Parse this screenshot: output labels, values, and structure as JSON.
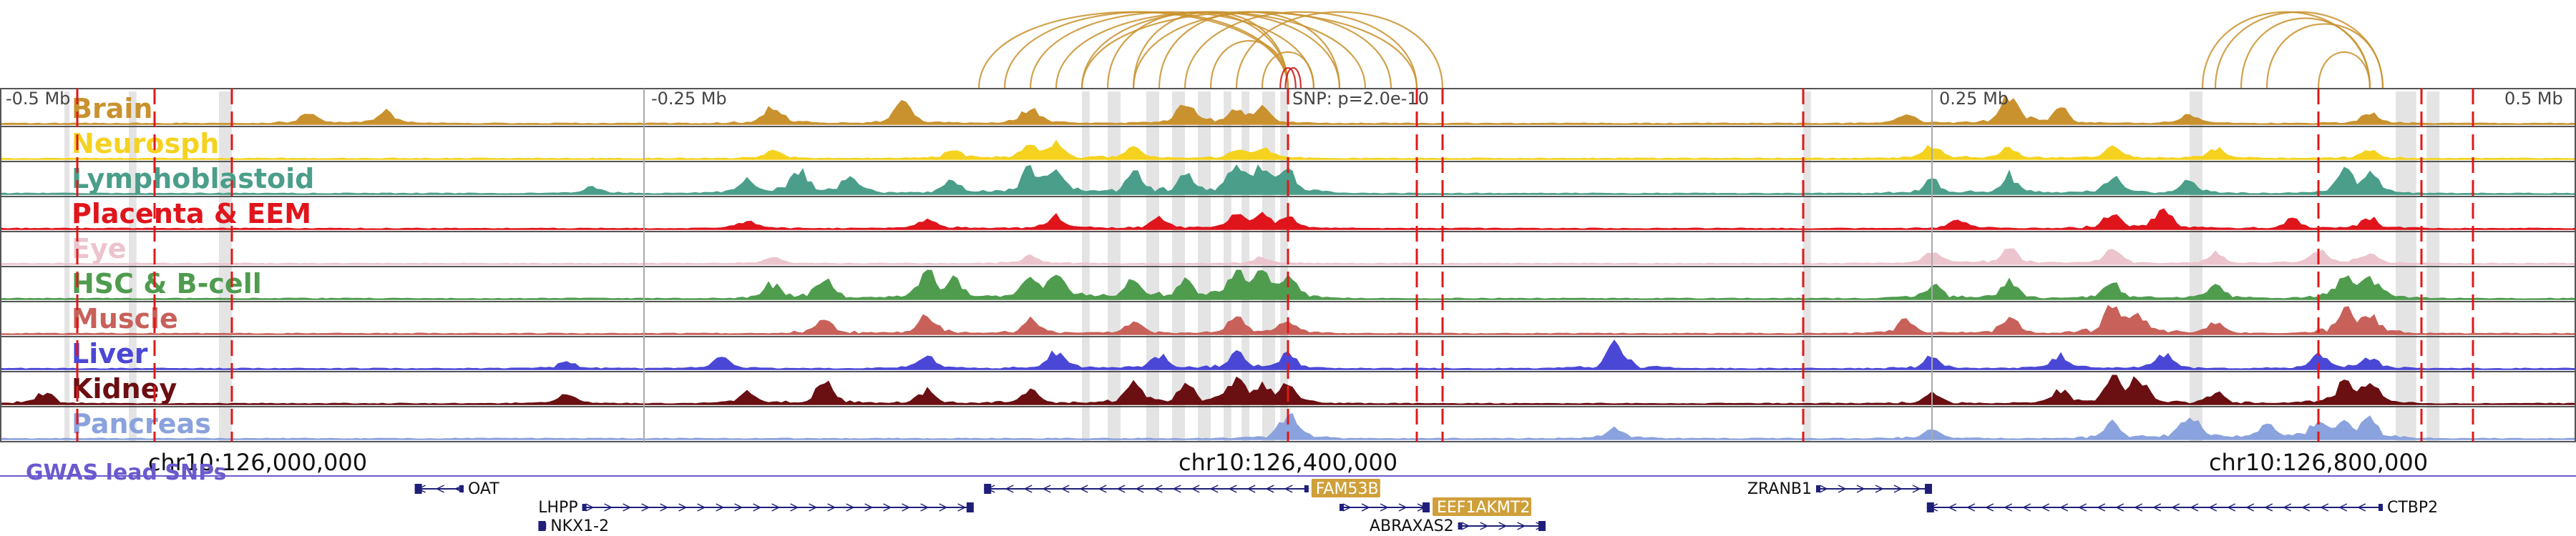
{
  "colors": {
    "loop": "#c9922e",
    "snp_loop": "#cc1111",
    "snp_line": "#e01818",
    "highlight": "#d9d9d9",
    "gwas": "#6a5acd",
    "gene": "#1f1f7a",
    "gene_badge": "#cfa03a"
  },
  "ruler": {
    "ticks": [
      {
        "pos": -0.5,
        "label": "-0.5 Mb"
      },
      {
        "pos": -0.25,
        "label": "-0.25 Mb"
      },
      {
        "pos": 0.25,
        "label": "0.25 Mb"
      },
      {
        "pos": 0.5,
        "label": "0.5 Mb"
      }
    ],
    "snp_label": "SNP: p=2.0e-10"
  },
  "coords": [
    {
      "pos": -0.4,
      "label": "chr10:126,000,000"
    },
    {
      "pos": 0.0,
      "label": "chr10:126,400,000"
    },
    {
      "pos": 0.4,
      "label": "chr10:126,800,000"
    }
  ],
  "gwas_label": "GWAS lead SNPs",
  "chart_data": {
    "type": "area",
    "x_unit": "Mb relative to lead SNP",
    "xlim": [
      -0.5,
      0.5
    ],
    "lead_snp_pos": 0.0,
    "red_markers": [
      -0.47,
      -0.44,
      -0.41,
      0.0,
      0.05,
      0.06,
      0.2,
      0.4,
      0.44,
      0.46
    ],
    "highlight_regions": [
      [
        -0.475,
        -0.473
      ],
      [
        -0.45,
        -0.447
      ],
      [
        -0.415,
        -0.41
      ],
      [
        -0.08,
        -0.077
      ],
      [
        -0.07,
        -0.065
      ],
      [
        -0.055,
        -0.05
      ],
      [
        -0.045,
        -0.04
      ],
      [
        -0.035,
        -0.03
      ],
      [
        -0.025,
        -0.022
      ],
      [
        -0.018,
        -0.015
      ],
      [
        -0.01,
        -0.005
      ],
      [
        -0.003,
        0.0
      ],
      [
        0.2,
        0.203
      ],
      [
        0.35,
        0.355
      ],
      [
        0.43,
        0.438
      ],
      [
        0.442,
        0.447
      ]
    ],
    "series": [
      {
        "name": "Brain",
        "color": "#c9922e",
        "peaks": [
          [
            0.46,
            0.7
          ],
          [
            0.35,
            0.2
          ],
          [
            0.12,
            0.35
          ],
          [
            0.15,
            0.4
          ],
          [
            0.3,
            0.65
          ],
          [
            0.35,
            0.6
          ],
          [
            0.4,
            0.55
          ],
          [
            0.48,
            0.5
          ],
          [
            0.49,
            0.55
          ],
          [
            0.74,
            0.3
          ],
          [
            0.78,
            0.9
          ],
          [
            0.8,
            0.45
          ],
          [
            0.85,
            0.35
          ],
          [
            0.92,
            0.4
          ]
        ]
      },
      {
        "name": "Neurosph",
        "color": "#f5d21f",
        "peaks": [
          [
            0.3,
            0.25
          ],
          [
            0.37,
            0.3
          ],
          [
            0.4,
            0.45
          ],
          [
            0.41,
            0.5
          ],
          [
            0.44,
            0.35
          ],
          [
            0.48,
            0.3
          ],
          [
            0.49,
            0.35
          ],
          [
            0.75,
            0.4
          ],
          [
            0.78,
            0.35
          ],
          [
            0.82,
            0.4
          ],
          [
            0.86,
            0.35
          ],
          [
            0.92,
            0.3
          ]
        ]
      },
      {
        "name": "Lymphoblastoid",
        "color": "#4a9e8a",
        "peaks": [
          [
            0.23,
            0.2
          ],
          [
            0.29,
            0.5
          ],
          [
            0.31,
            0.8
          ],
          [
            0.33,
            0.6
          ],
          [
            0.37,
            0.5
          ],
          [
            0.4,
            0.85
          ],
          [
            0.41,
            0.75
          ],
          [
            0.44,
            0.7
          ],
          [
            0.46,
            0.6
          ],
          [
            0.48,
            0.85
          ],
          [
            0.49,
            0.8
          ],
          [
            0.5,
            0.7
          ],
          [
            0.75,
            0.5
          ],
          [
            0.78,
            0.6
          ],
          [
            0.82,
            0.55
          ],
          [
            0.85,
            0.45
          ],
          [
            0.91,
            0.75
          ],
          [
            0.92,
            0.7
          ]
        ]
      },
      {
        "name": "Placenta & EEM",
        "color": "#e0151c",
        "peaks": [
          [
            0.29,
            0.3
          ],
          [
            0.36,
            0.35
          ],
          [
            0.41,
            0.4
          ],
          [
            0.45,
            0.35
          ],
          [
            0.48,
            0.45
          ],
          [
            0.49,
            0.4
          ],
          [
            0.5,
            0.35
          ],
          [
            0.76,
            0.3
          ],
          [
            0.82,
            0.55
          ],
          [
            0.84,
            0.6
          ],
          [
            0.89,
            0.3
          ],
          [
            0.92,
            0.4
          ]
        ]
      },
      {
        "name": "Eye",
        "color": "#ecc4cd",
        "peaks": [
          [
            0.3,
            0.2
          ],
          [
            0.4,
            0.25
          ],
          [
            0.49,
            0.2
          ],
          [
            0.75,
            0.4
          ],
          [
            0.78,
            0.6
          ],
          [
            0.82,
            0.45
          ],
          [
            0.86,
            0.35
          ],
          [
            0.9,
            0.45
          ],
          [
            0.92,
            0.4
          ]
        ]
      },
      {
        "name": "HSC & B-cell",
        "color": "#4f9c4f",
        "peaks": [
          [
            0.3,
            0.5
          ],
          [
            0.32,
            0.7
          ],
          [
            0.36,
            0.85
          ],
          [
            0.37,
            0.6
          ],
          [
            0.4,
            0.8
          ],
          [
            0.41,
            0.9
          ],
          [
            0.44,
            0.7
          ],
          [
            0.46,
            0.6
          ],
          [
            0.48,
            0.9
          ],
          [
            0.49,
            0.85
          ],
          [
            0.5,
            0.7
          ],
          [
            0.75,
            0.5
          ],
          [
            0.78,
            0.6
          ],
          [
            0.82,
            0.55
          ],
          [
            0.86,
            0.5
          ],
          [
            0.91,
            0.8
          ],
          [
            0.92,
            0.7
          ]
        ]
      },
      {
        "name": "Muscle",
        "color": "#c7615a",
        "peaks": [
          [
            0.32,
            0.5
          ],
          [
            0.36,
            0.6
          ],
          [
            0.4,
            0.45
          ],
          [
            0.44,
            0.4
          ],
          [
            0.48,
            0.55
          ],
          [
            0.5,
            0.45
          ],
          [
            0.74,
            0.45
          ],
          [
            0.78,
            0.6
          ],
          [
            0.82,
            0.85
          ],
          [
            0.83,
            0.7
          ],
          [
            0.86,
            0.4
          ],
          [
            0.91,
            0.75
          ],
          [
            0.92,
            0.6
          ]
        ]
      },
      {
        "name": "Liver",
        "color": "#4b47d6",
        "peaks": [
          [
            0.22,
            0.25
          ],
          [
            0.28,
            0.35
          ],
          [
            0.36,
            0.45
          ],
          [
            0.41,
            0.6
          ],
          [
            0.45,
            0.5
          ],
          [
            0.48,
            0.55
          ],
          [
            0.5,
            0.5
          ],
          [
            0.627,
            0.95
          ],
          [
            0.75,
            0.4
          ],
          [
            0.8,
            0.45
          ],
          [
            0.84,
            0.5
          ],
          [
            0.9,
            0.45
          ],
          [
            0.92,
            0.4
          ]
        ]
      },
      {
        "name": "Kidney",
        "color": "#6a0f12",
        "peaks": [
          [
            0.017,
            0.4
          ],
          [
            0.22,
            0.3
          ],
          [
            0.29,
            0.4
          ],
          [
            0.32,
            0.8
          ],
          [
            0.36,
            0.45
          ],
          [
            0.4,
            0.55
          ],
          [
            0.44,
            0.7
          ],
          [
            0.46,
            0.6
          ],
          [
            0.48,
            0.75
          ],
          [
            0.49,
            0.65
          ],
          [
            0.5,
            0.55
          ],
          [
            0.75,
            0.35
          ],
          [
            0.8,
            0.45
          ],
          [
            0.82,
            0.95
          ],
          [
            0.83,
            0.85
          ],
          [
            0.86,
            0.4
          ],
          [
            0.91,
            0.8
          ],
          [
            0.92,
            0.6
          ]
        ]
      },
      {
        "name": "Pancreas",
        "color": "#8aa2dd",
        "peaks": [
          [
            0.5,
            0.9
          ],
          [
            0.627,
            0.35
          ],
          [
            0.75,
            0.3
          ],
          [
            0.82,
            0.5
          ],
          [
            0.85,
            0.85
          ],
          [
            0.88,
            0.5
          ],
          [
            0.9,
            0.5
          ],
          [
            0.91,
            0.55
          ],
          [
            0.92,
            0.6
          ]
        ]
      }
    ],
    "loops_left": [
      {
        "from": 0.38,
        "to": 0.5
      },
      {
        "from": 0.39,
        "to": 0.5
      },
      {
        "from": 0.4,
        "to": 0.51
      },
      {
        "from": 0.41,
        "to": 0.53
      },
      {
        "from": 0.42,
        "to": 0.52
      },
      {
        "from": 0.43,
        "to": 0.5
      },
      {
        "from": 0.44,
        "to": 0.54
      },
      {
        "from": 0.45,
        "to": 0.52
      },
      {
        "from": 0.46,
        "to": 0.55
      },
      {
        "from": 0.47,
        "to": 0.5
      },
      {
        "from": 0.48,
        "to": 0.56
      },
      {
        "from": 0.49,
        "to": 0.51
      },
      {
        "from": 0.42,
        "to": 0.55
      },
      {
        "from": 0.44,
        "to": 0.5
      }
    ],
    "loops_snp": [
      {
        "from": 0.499,
        "to": 0.505
      },
      {
        "from": 0.497,
        "to": 0.503
      }
    ],
    "loops_right": [
      {
        "from": 0.855,
        "to": 0.92
      },
      {
        "from": 0.86,
        "to": 0.925
      },
      {
        "from": 0.87,
        "to": 0.92
      },
      {
        "from": 0.88,
        "to": 0.925
      },
      {
        "from": 0.9,
        "to": 0.92
      }
    ],
    "genes": [
      {
        "name": "OAT",
        "start": 0.161,
        "end": 0.18,
        "row": 0,
        "strand": "-",
        "label_side": "right",
        "badge": false
      },
      {
        "name": "LHPP",
        "start": 0.226,
        "end": 0.378,
        "row": 1,
        "strand": "+",
        "label_side": "left",
        "badge": false
      },
      {
        "name": "NKX1-2",
        "start": 0.209,
        "end": 0.212,
        "row": 2,
        "strand": "-",
        "label_side": "right",
        "badge": false
      },
      {
        "name": "FAM53B",
        "start": 0.382,
        "end": 0.508,
        "row": 0,
        "strand": "-",
        "label_side": "right",
        "badge": true
      },
      {
        "name": "EEF1AKMT2",
        "start": 0.52,
        "end": 0.555,
        "row": 1,
        "strand": "+",
        "label_side": "right",
        "badge": true
      },
      {
        "name": "ABRAXAS2",
        "start": 0.566,
        "end": 0.6,
        "row": 2,
        "strand": "+",
        "label_side": "left",
        "badge": false
      },
      {
        "name": "ZRANB1",
        "start": 0.705,
        "end": 0.75,
        "row": 0,
        "strand": "+",
        "label_side": "left",
        "badge": false
      },
      {
        "name": "CTBP2",
        "start": 0.748,
        "end": 0.925,
        "row": 1,
        "strand": "-",
        "label_side": "right",
        "badge": false
      }
    ]
  }
}
